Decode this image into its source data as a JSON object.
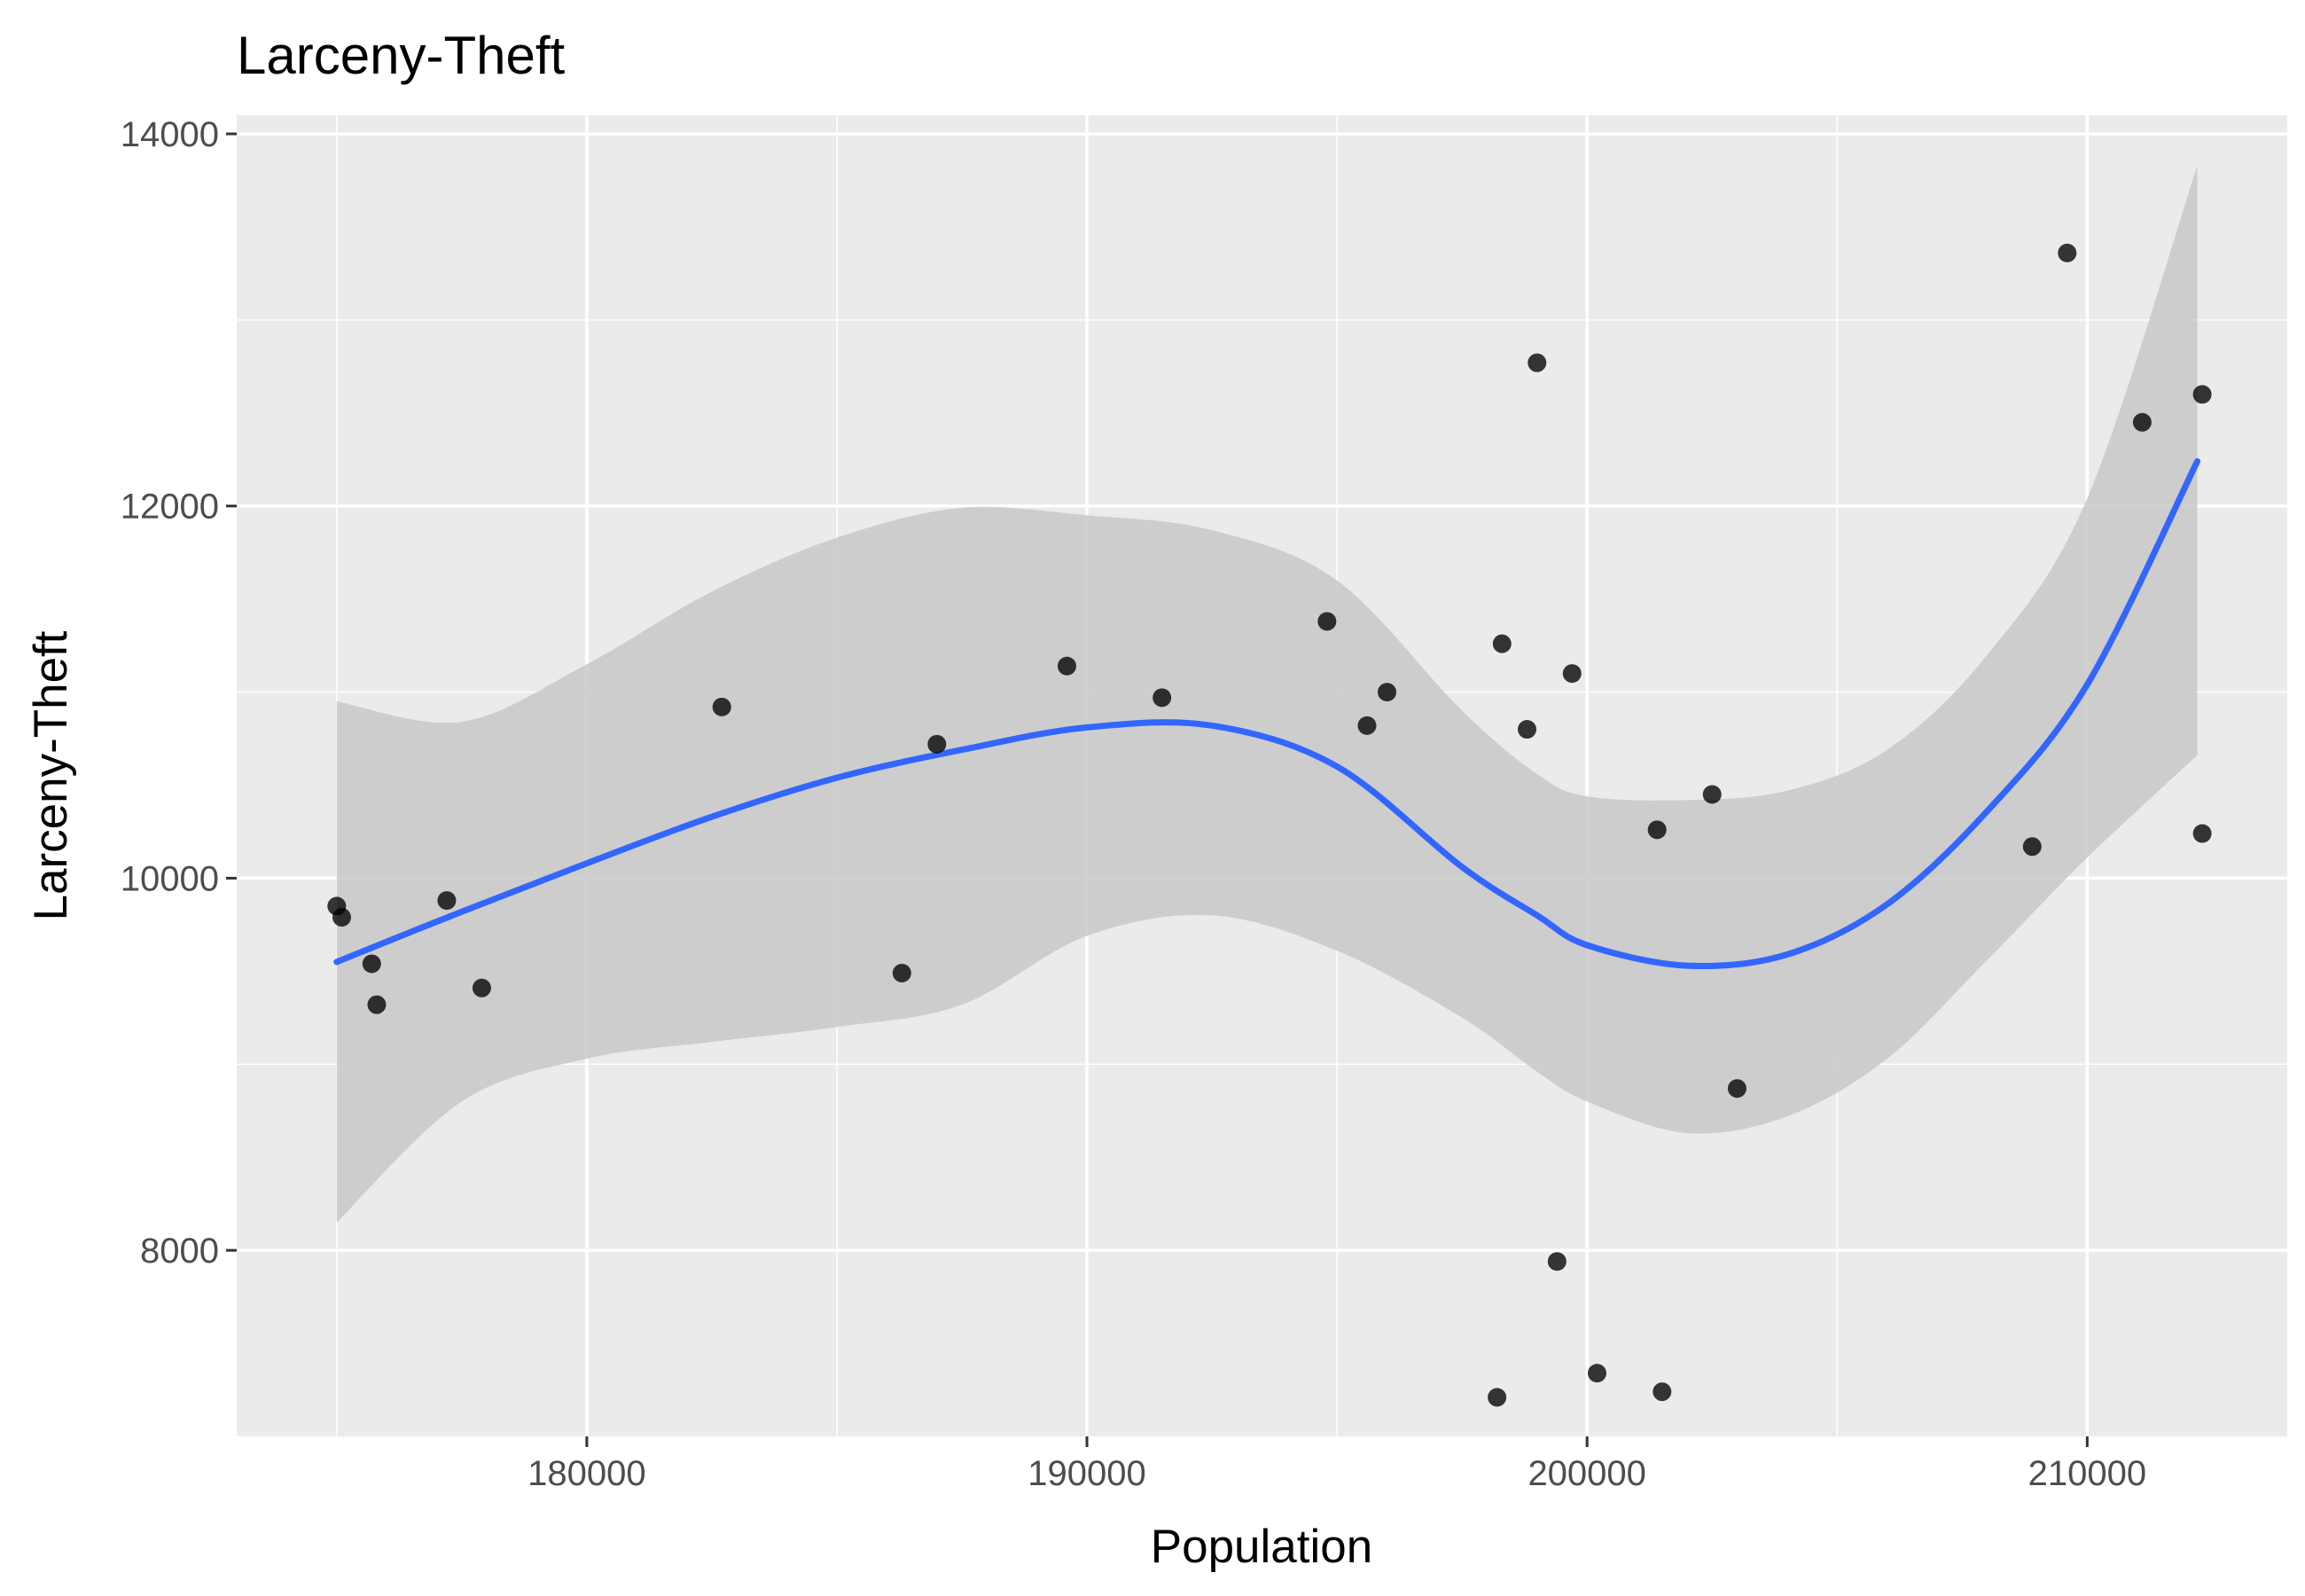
{
  "chart_data": {
    "type": "scatter",
    "title": "Larceny-Theft",
    "xlabel": "Population",
    "ylabel": "Larceny-Theft",
    "xlim": [
      173000,
      214000
    ],
    "ylim": [
      7000,
      14100
    ],
    "xticks": [
      180000,
      190000,
      200000,
      210000
    ],
    "xtick_labels": [
      "180000",
      "190000",
      "200000",
      "210000"
    ],
    "yticks": [
      8000,
      10000,
      12000,
      14000
    ],
    "ytick_labels": [
      "8000",
      "10000",
      "12000",
      "14000"
    ],
    "grid": true,
    "legend": "none",
    "colors": {
      "panel": "#ebebeb",
      "grid": "#ffffff",
      "points": "#000000",
      "smooth_line": "#3366ff",
      "confidence_band": "#c8c8c8"
    },
    "points": [
      {
        "x": 175000,
        "y": 9850
      },
      {
        "x": 175100,
        "y": 9790
      },
      {
        "x": 175700,
        "y": 9540
      },
      {
        "x": 175800,
        "y": 9320
      },
      {
        "x": 177200,
        "y": 9880
      },
      {
        "x": 177900,
        "y": 9410
      },
      {
        "x": 182700,
        "y": 10920
      },
      {
        "x": 186300,
        "y": 9490
      },
      {
        "x": 187000,
        "y": 10720
      },
      {
        "x": 189600,
        "y": 11140
      },
      {
        "x": 191500,
        "y": 10970
      },
      {
        "x": 194800,
        "y": 11380
      },
      {
        "x": 195600,
        "y": 10820
      },
      {
        "x": 196000,
        "y": 11000
      },
      {
        "x": 198200,
        "y": 7210
      },
      {
        "x": 198300,
        "y": 11260
      },
      {
        "x": 198800,
        "y": 10800
      },
      {
        "x": 199000,
        "y": 12770
      },
      {
        "x": 199400,
        "y": 7940
      },
      {
        "x": 199700,
        "y": 11100
      },
      {
        "x": 200200,
        "y": 7340
      },
      {
        "x": 201400,
        "y": 10260
      },
      {
        "x": 201500,
        "y": 7240
      },
      {
        "x": 202500,
        "y": 10450
      },
      {
        "x": 203000,
        "y": 8870
      },
      {
        "x": 208900,
        "y": 10170
      },
      {
        "x": 209600,
        "y": 13360
      },
      {
        "x": 211100,
        "y": 12450
      },
      {
        "x": 212300,
        "y": 12600
      },
      {
        "x": 212300,
        "y": 10240
      }
    ],
    "smooth": {
      "x": [
        175000,
        177500,
        180000,
        182500,
        185000,
        187500,
        190000,
        192500,
        195000,
        197500,
        199000,
        200000,
        202000,
        204000,
        206000,
        208000,
        210000,
        212200
      ],
      "y": [
        9550,
        9820,
        10080,
        10330,
        10540,
        10690,
        10810,
        10820,
        10600,
        10060,
        9800,
        9640,
        9530,
        9590,
        9860,
        10360,
        11040,
        12240
      ],
      "lower": [
        8150,
        8800,
        9030,
        9120,
        9200,
        9320,
        9690,
        9800,
        9610,
        9250,
        8960,
        8800,
        8630,
        8720,
        9030,
        9560,
        10110,
        10660
      ],
      "upper": [
        10950,
        10840,
        11150,
        11540,
        11830,
        11990,
        11950,
        11870,
        11600,
        10900,
        10560,
        10440,
        10420,
        10470,
        10690,
        11200,
        12040,
        13830
      ]
    }
  }
}
